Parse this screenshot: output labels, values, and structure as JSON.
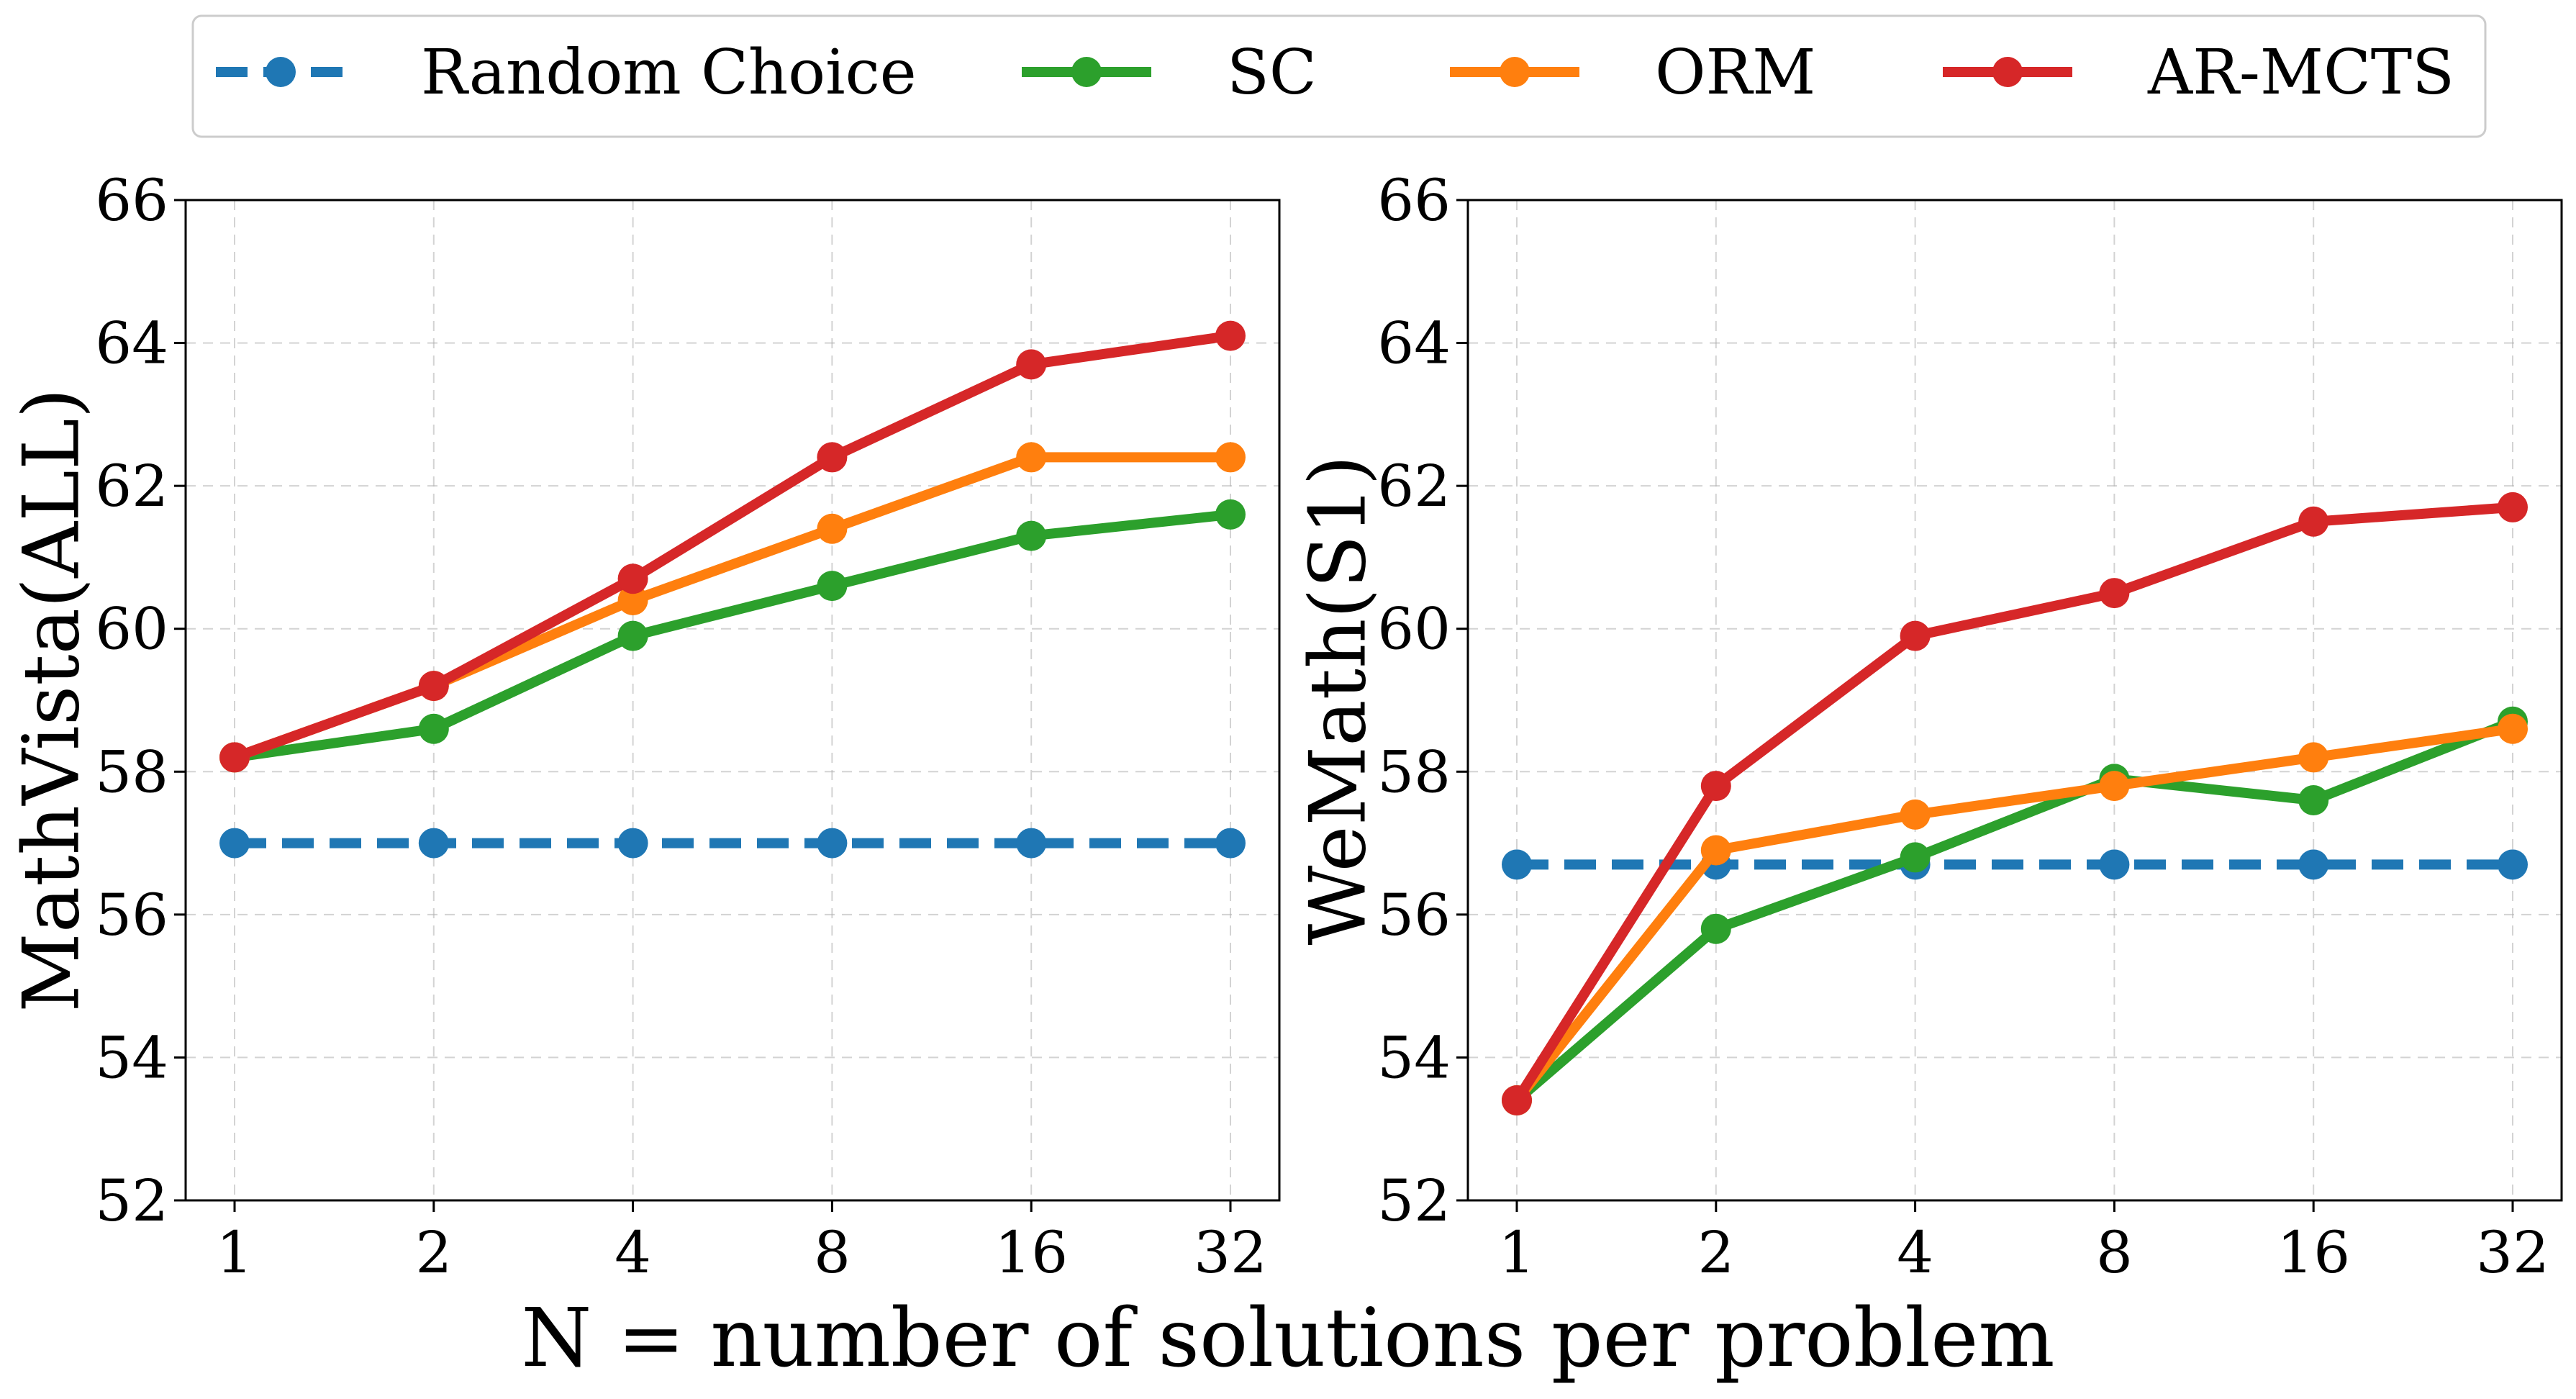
{
  "chart_data": [
    {
      "type": "line",
      "title": "",
      "xlabel": "",
      "ylabel": "MathVista(ALL)",
      "categories": [
        "1",
        "2",
        "4",
        "8",
        "16",
        "32"
      ],
      "ylim": [
        52,
        66
      ],
      "yticks": [
        "52",
        "54",
        "56",
        "58",
        "60",
        "62",
        "64",
        "66"
      ],
      "grid": true,
      "series": [
        {
          "name": "Random Choice",
          "color": "#1f77b4",
          "dashed": true,
          "values": [
            57.0,
            57.0,
            57.0,
            57.0,
            57.0,
            57.0
          ]
        },
        {
          "name": "SC",
          "color": "#2ca02c",
          "dashed": false,
          "values": [
            58.2,
            58.6,
            59.9,
            60.6,
            61.3,
            61.6
          ]
        },
        {
          "name": "ORM",
          "color": "#ff7f0e",
          "dashed": false,
          "values": [
            58.2,
            59.2,
            60.4,
            61.4,
            62.4,
            62.4
          ]
        },
        {
          "name": "AR-MCTS",
          "color": "#d62728",
          "dashed": false,
          "values": [
            58.2,
            59.2,
            60.7,
            62.4,
            63.7,
            64.1
          ]
        }
      ]
    },
    {
      "type": "line",
      "title": "",
      "xlabel": "",
      "ylabel": "WeMath(S1)",
      "categories": [
        "1",
        "2",
        "4",
        "8",
        "16",
        "32"
      ],
      "ylim": [
        52,
        66
      ],
      "yticks": [
        "52",
        "54",
        "56",
        "58",
        "60",
        "62",
        "64",
        "66"
      ],
      "grid": true,
      "series": [
        {
          "name": "Random Choice",
          "color": "#1f77b4",
          "dashed": true,
          "values": [
            56.7,
            56.7,
            56.7,
            56.7,
            56.7,
            56.7
          ]
        },
        {
          "name": "SC",
          "color": "#2ca02c",
          "dashed": false,
          "values": [
            53.4,
            55.8,
            56.8,
            57.9,
            57.6,
            58.7
          ]
        },
        {
          "name": "ORM",
          "color": "#ff7f0e",
          "dashed": false,
          "values": [
            53.4,
            56.9,
            57.4,
            57.8,
            58.2,
            58.6
          ]
        },
        {
          "name": "AR-MCTS",
          "color": "#d62728",
          "dashed": false,
          "values": [
            53.4,
            57.8,
            59.9,
            60.5,
            61.5,
            61.7
          ]
        }
      ]
    }
  ],
  "legend": {
    "position": "top-center",
    "entries": [
      {
        "label": "Random Choice",
        "color": "#1f77b4",
        "dashed": true
      },
      {
        "label": "SC",
        "color": "#2ca02c",
        "dashed": false
      },
      {
        "label": "ORM",
        "color": "#ff7f0e",
        "dashed": false
      },
      {
        "label": "AR-MCTS",
        "color": "#d62728",
        "dashed": false
      }
    ]
  },
  "shared_xlabel": "N = number of solutions per problem"
}
